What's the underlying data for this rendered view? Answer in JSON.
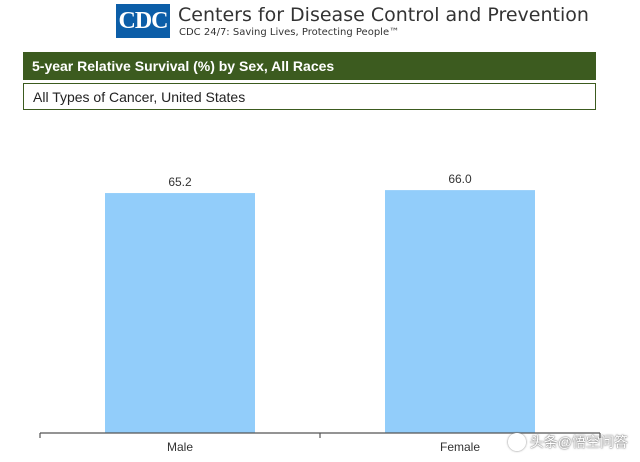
{
  "header": {
    "logo_text": "CDC",
    "org_name": "Centers for Disease Control and Prevention",
    "tagline": "CDC 24/7: Saving Lives, Protecting People™"
  },
  "chart_data": {
    "type": "bar",
    "title": "5-year Relative Survival (%) by Sex, All Races",
    "subtitle": "All Types of Cancer, United States",
    "categories": [
      "Male",
      "Female"
    ],
    "values": [
      65.2,
      66.0
    ],
    "value_labels": [
      "65.2",
      "66.0"
    ],
    "xlabel": "",
    "ylabel": "",
    "ylim": [
      0,
      100
    ],
    "grid": false,
    "legend": "none",
    "bar_color": "#92cdfa"
  },
  "watermark": {
    "text": "头条@悟空问答"
  }
}
